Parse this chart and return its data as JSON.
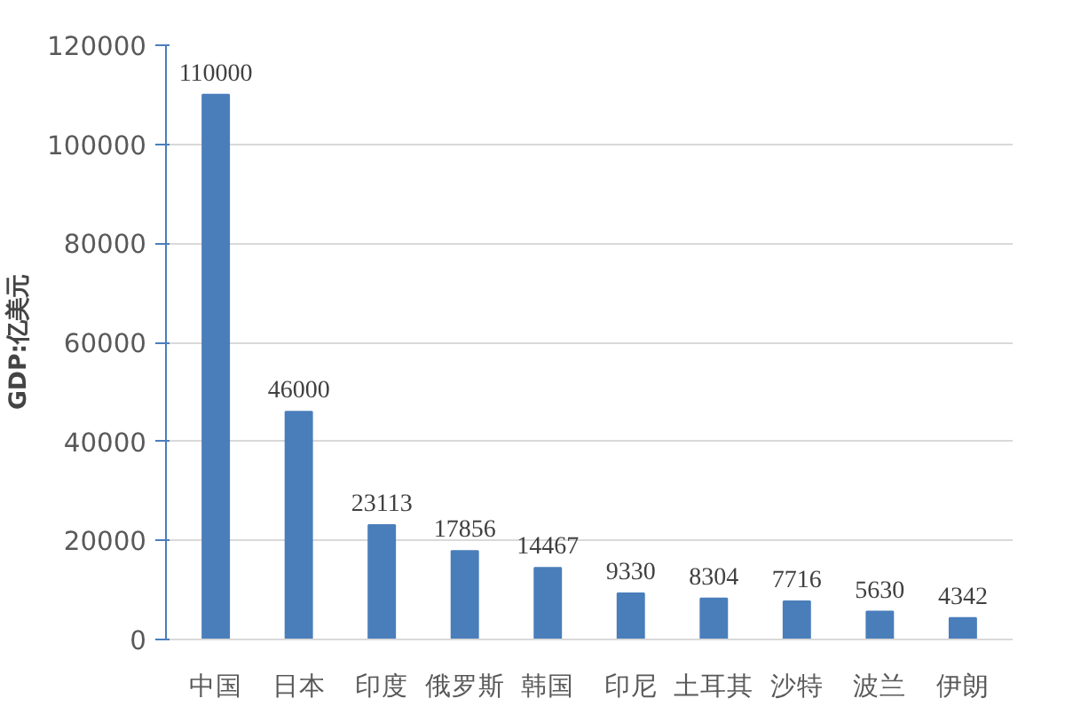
{
  "chart_data": {
    "type": "bar",
    "ylabel": "GDP:亿美元",
    "categories": [
      "中国",
      "日本",
      "印度",
      "俄罗斯",
      "韩国",
      "印尼",
      "土耳其",
      "沙特",
      "波兰",
      "伊朗"
    ],
    "values": [
      110000,
      46000,
      23113,
      17856,
      14467,
      9330,
      8304,
      7716,
      5630,
      4342
    ],
    "color": "#4a7ebb",
    "ylim": [
      0,
      120000
    ],
    "yticks": [
      0,
      20000,
      40000,
      60000,
      80000,
      100000,
      120000
    ],
    "grid": "y",
    "data_labels": true
  }
}
